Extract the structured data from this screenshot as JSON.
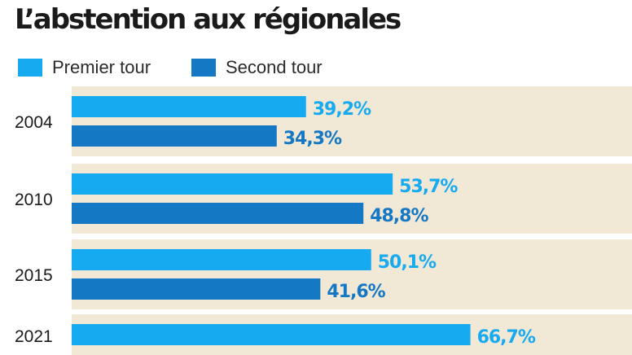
{
  "colors": {
    "premier": "#16aaf0",
    "second": "#1478c4",
    "band": "#f1e8d6",
    "year_text": "#1a1a1a"
  },
  "chart_data": {
    "type": "bar",
    "orientation": "horizontal",
    "title": "L’abstention aux régionales",
    "categories": [
      "2004",
      "2010",
      "2015",
      "2021"
    ],
    "series": [
      {
        "name": "Premier tour",
        "values": [
          39.2,
          53.7,
          50.1,
          66.7
        ],
        "labels": [
          "39,2%",
          "53,7%",
          "50,1%",
          "66,7%"
        ]
      },
      {
        "name": "Second tour",
        "values": [
          34.3,
          48.8,
          41.6,
          null
        ],
        "labels": [
          "34,3%",
          "48,8%",
          "41,6%",
          ""
        ]
      }
    ],
    "xlim": [
      0,
      100
    ],
    "grid": false,
    "legend": "top-left"
  }
}
